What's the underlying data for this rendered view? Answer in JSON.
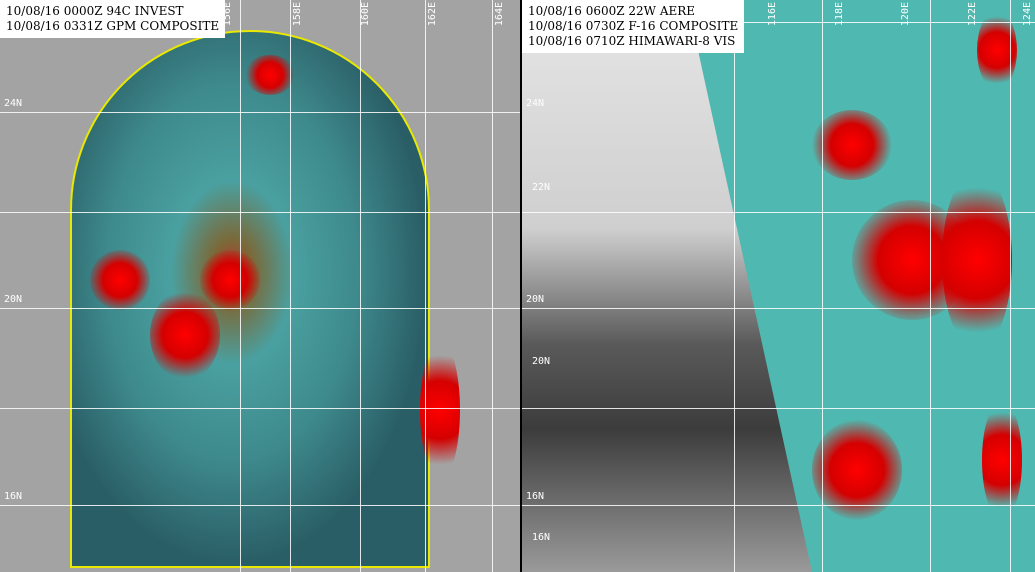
{
  "left_panel": {
    "caption": [
      "10/08/16 0000Z 94C INVEST",
      "10/08/16 0331Z GPM COMPOSITE"
    ],
    "lon_labels": [
      "156E",
      "158E",
      "160E",
      "162E",
      "164E"
    ],
    "lat_labels": [
      "24N",
      "20N",
      "16N"
    ]
  },
  "right_panel": {
    "caption": [
      "10/08/16 0600Z 22W AERE",
      "10/08/16 0730Z F-16 COMPOSITE",
      "10/08/16 0710Z HIMAWARI-8 VIS"
    ],
    "lon_labels": [
      "116E",
      "118E",
      "120E",
      "122E",
      "124E"
    ],
    "lat_labels": [
      "24N",
      "22N",
      "20N",
      "20N",
      "16N",
      "16N"
    ]
  },
  "colors": {
    "swath_outline": "#e8e800",
    "rain_heavy": "#ff0000",
    "background_gray": "#a3a3a3"
  }
}
